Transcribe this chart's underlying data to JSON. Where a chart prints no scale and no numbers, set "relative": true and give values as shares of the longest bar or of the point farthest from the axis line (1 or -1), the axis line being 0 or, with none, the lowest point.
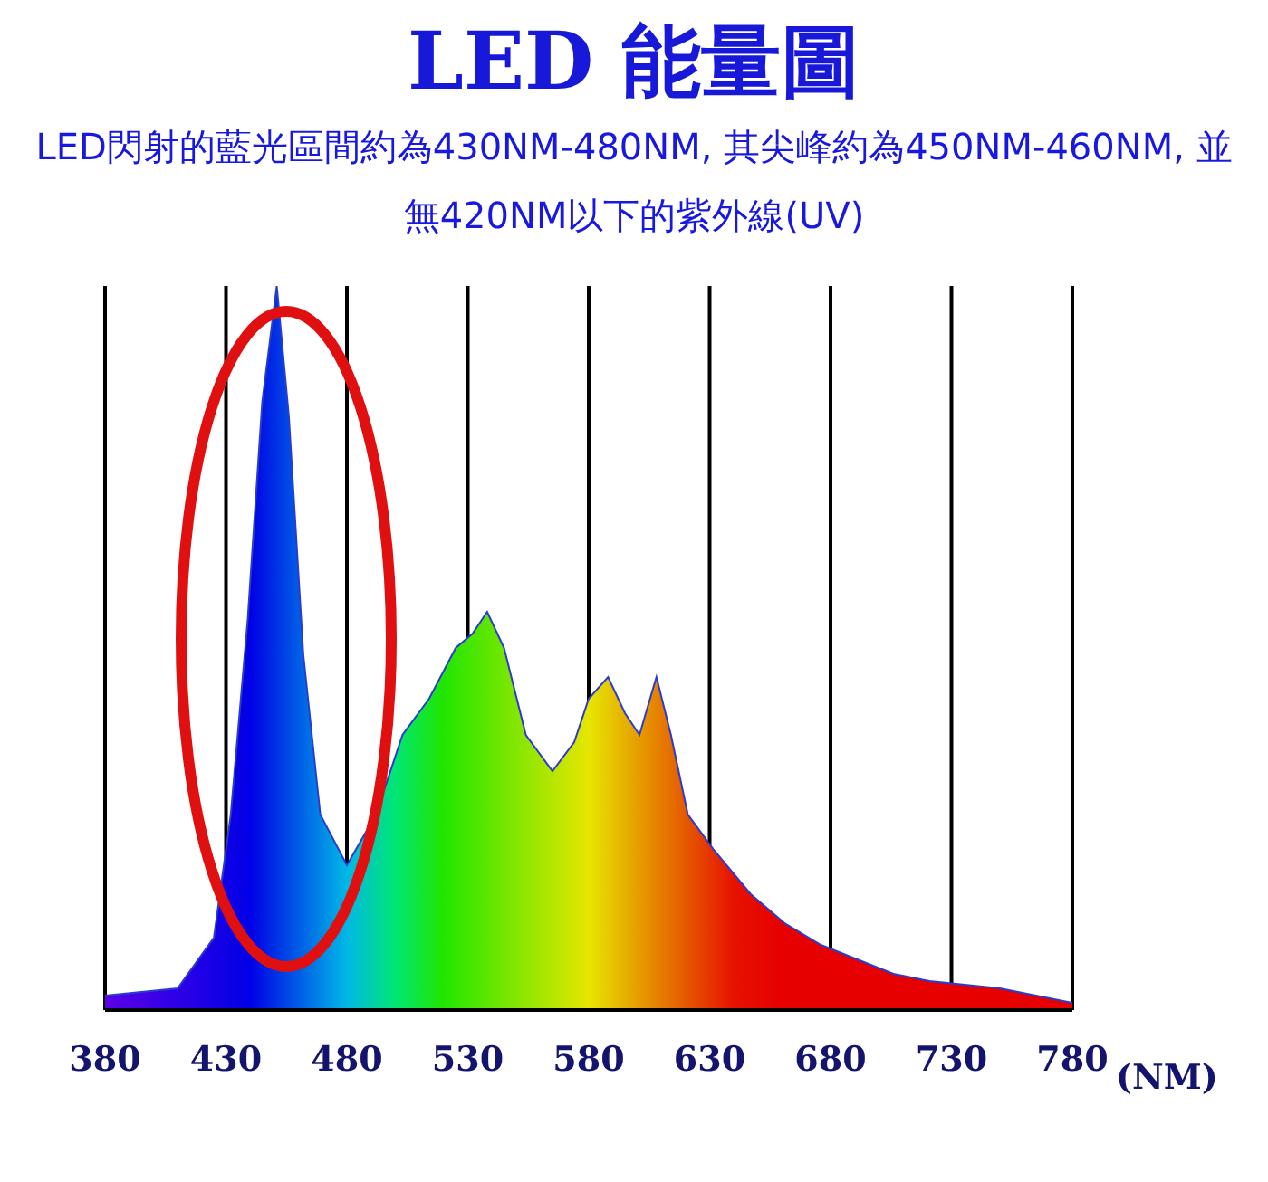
{
  "chart_data": {
    "type": "area",
    "title": "LED 能量圖",
    "subtitle": "LED閃射的藍光區間約為430NM-480NM, 其尖峰約為450NM-460NM, 並無420NM以下的紫外線(UV)",
    "xlabel": "(NM)",
    "relative": true,
    "xlim": [
      380,
      780
    ],
    "xticks": [
      380,
      430,
      480,
      530,
      580,
      630,
      680,
      730,
      780
    ],
    "grid": "x",
    "legend": false,
    "x": [
      380,
      410,
      425,
      432,
      439,
      445,
      451,
      456,
      462,
      469,
      480,
      492,
      503,
      514,
      525,
      532,
      538,
      545,
      554,
      565,
      574,
      580,
      588,
      595,
      601,
      608,
      614,
      621,
      632,
      647,
      661,
      676,
      691,
      706,
      721,
      750,
      780
    ],
    "series": [
      {
        "color": "#2a3bd0",
        "values": [
          0.02,
          0.03,
          0.1,
          0.27,
          0.54,
          0.84,
          1,
          0.82,
          0.49,
          0.27,
          0.2,
          0.27,
          0.38,
          0.43,
          0.5,
          0.52,
          0.55,
          0.5,
          0.38,
          0.33,
          0.37,
          0.43,
          0.46,
          0.41,
          0.38,
          0.46,
          0.38,
          0.27,
          0.22,
          0.16,
          0.12,
          0.09,
          0.07,
          0.05,
          0.04,
          0.03,
          0.01
        ]
      }
    ]
  }
}
